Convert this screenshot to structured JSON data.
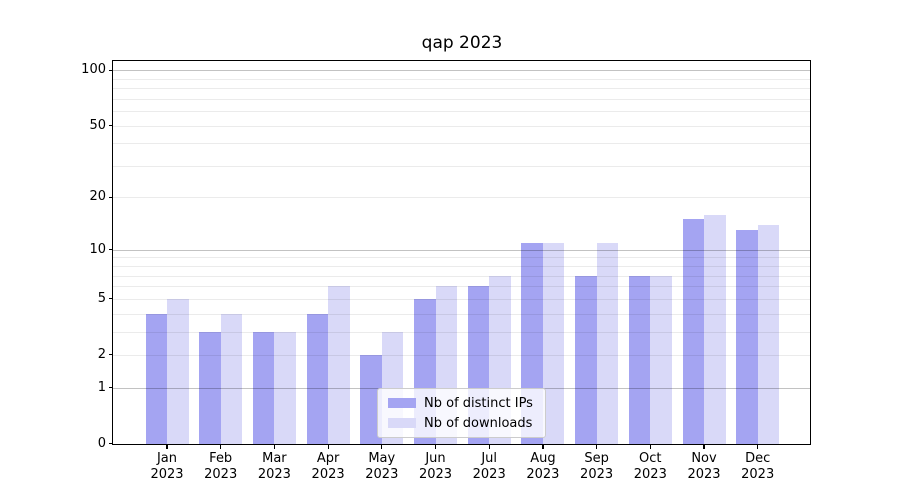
{
  "title": "qap 2023",
  "chart_data": {
    "type": "bar",
    "title": "qap 2023",
    "x": {
      "months": [
        "Jan",
        "Feb",
        "Mar",
        "Apr",
        "May",
        "Jun",
        "Jul",
        "Aug",
        "Sep",
        "Oct",
        "Nov",
        "Dec"
      ],
      "year": "2023"
    },
    "series": [
      {
        "name": "Nb of distinct IPs",
        "color": "#a4a4f2",
        "values": [
          4,
          3,
          3,
          4,
          2,
          5,
          6,
          11,
          7,
          7,
          15,
          13
        ]
      },
      {
        "name": "Nb of downloads",
        "color": "#d9d9f8",
        "values": [
          5,
          4,
          3,
          6,
          3,
          6,
          7,
          11,
          11,
          7,
          16,
          14
        ]
      }
    ],
    "y_axis": {
      "scale": "log1p",
      "tick_labels": [
        100,
        50,
        20,
        10,
        5,
        2,
        1,
        0
      ],
      "major_gridlines": [
        1,
        10,
        100
      ],
      "minor_gridlines": [
        2,
        3,
        4,
        5,
        6,
        7,
        8,
        9,
        20,
        30,
        40,
        50,
        60,
        70,
        80,
        90
      ],
      "ylim": [
        0,
        112
      ]
    },
    "legend": {
      "position": "lower center",
      "entries": [
        "Nb of distinct IPs",
        "Nb of downloads"
      ]
    }
  }
}
